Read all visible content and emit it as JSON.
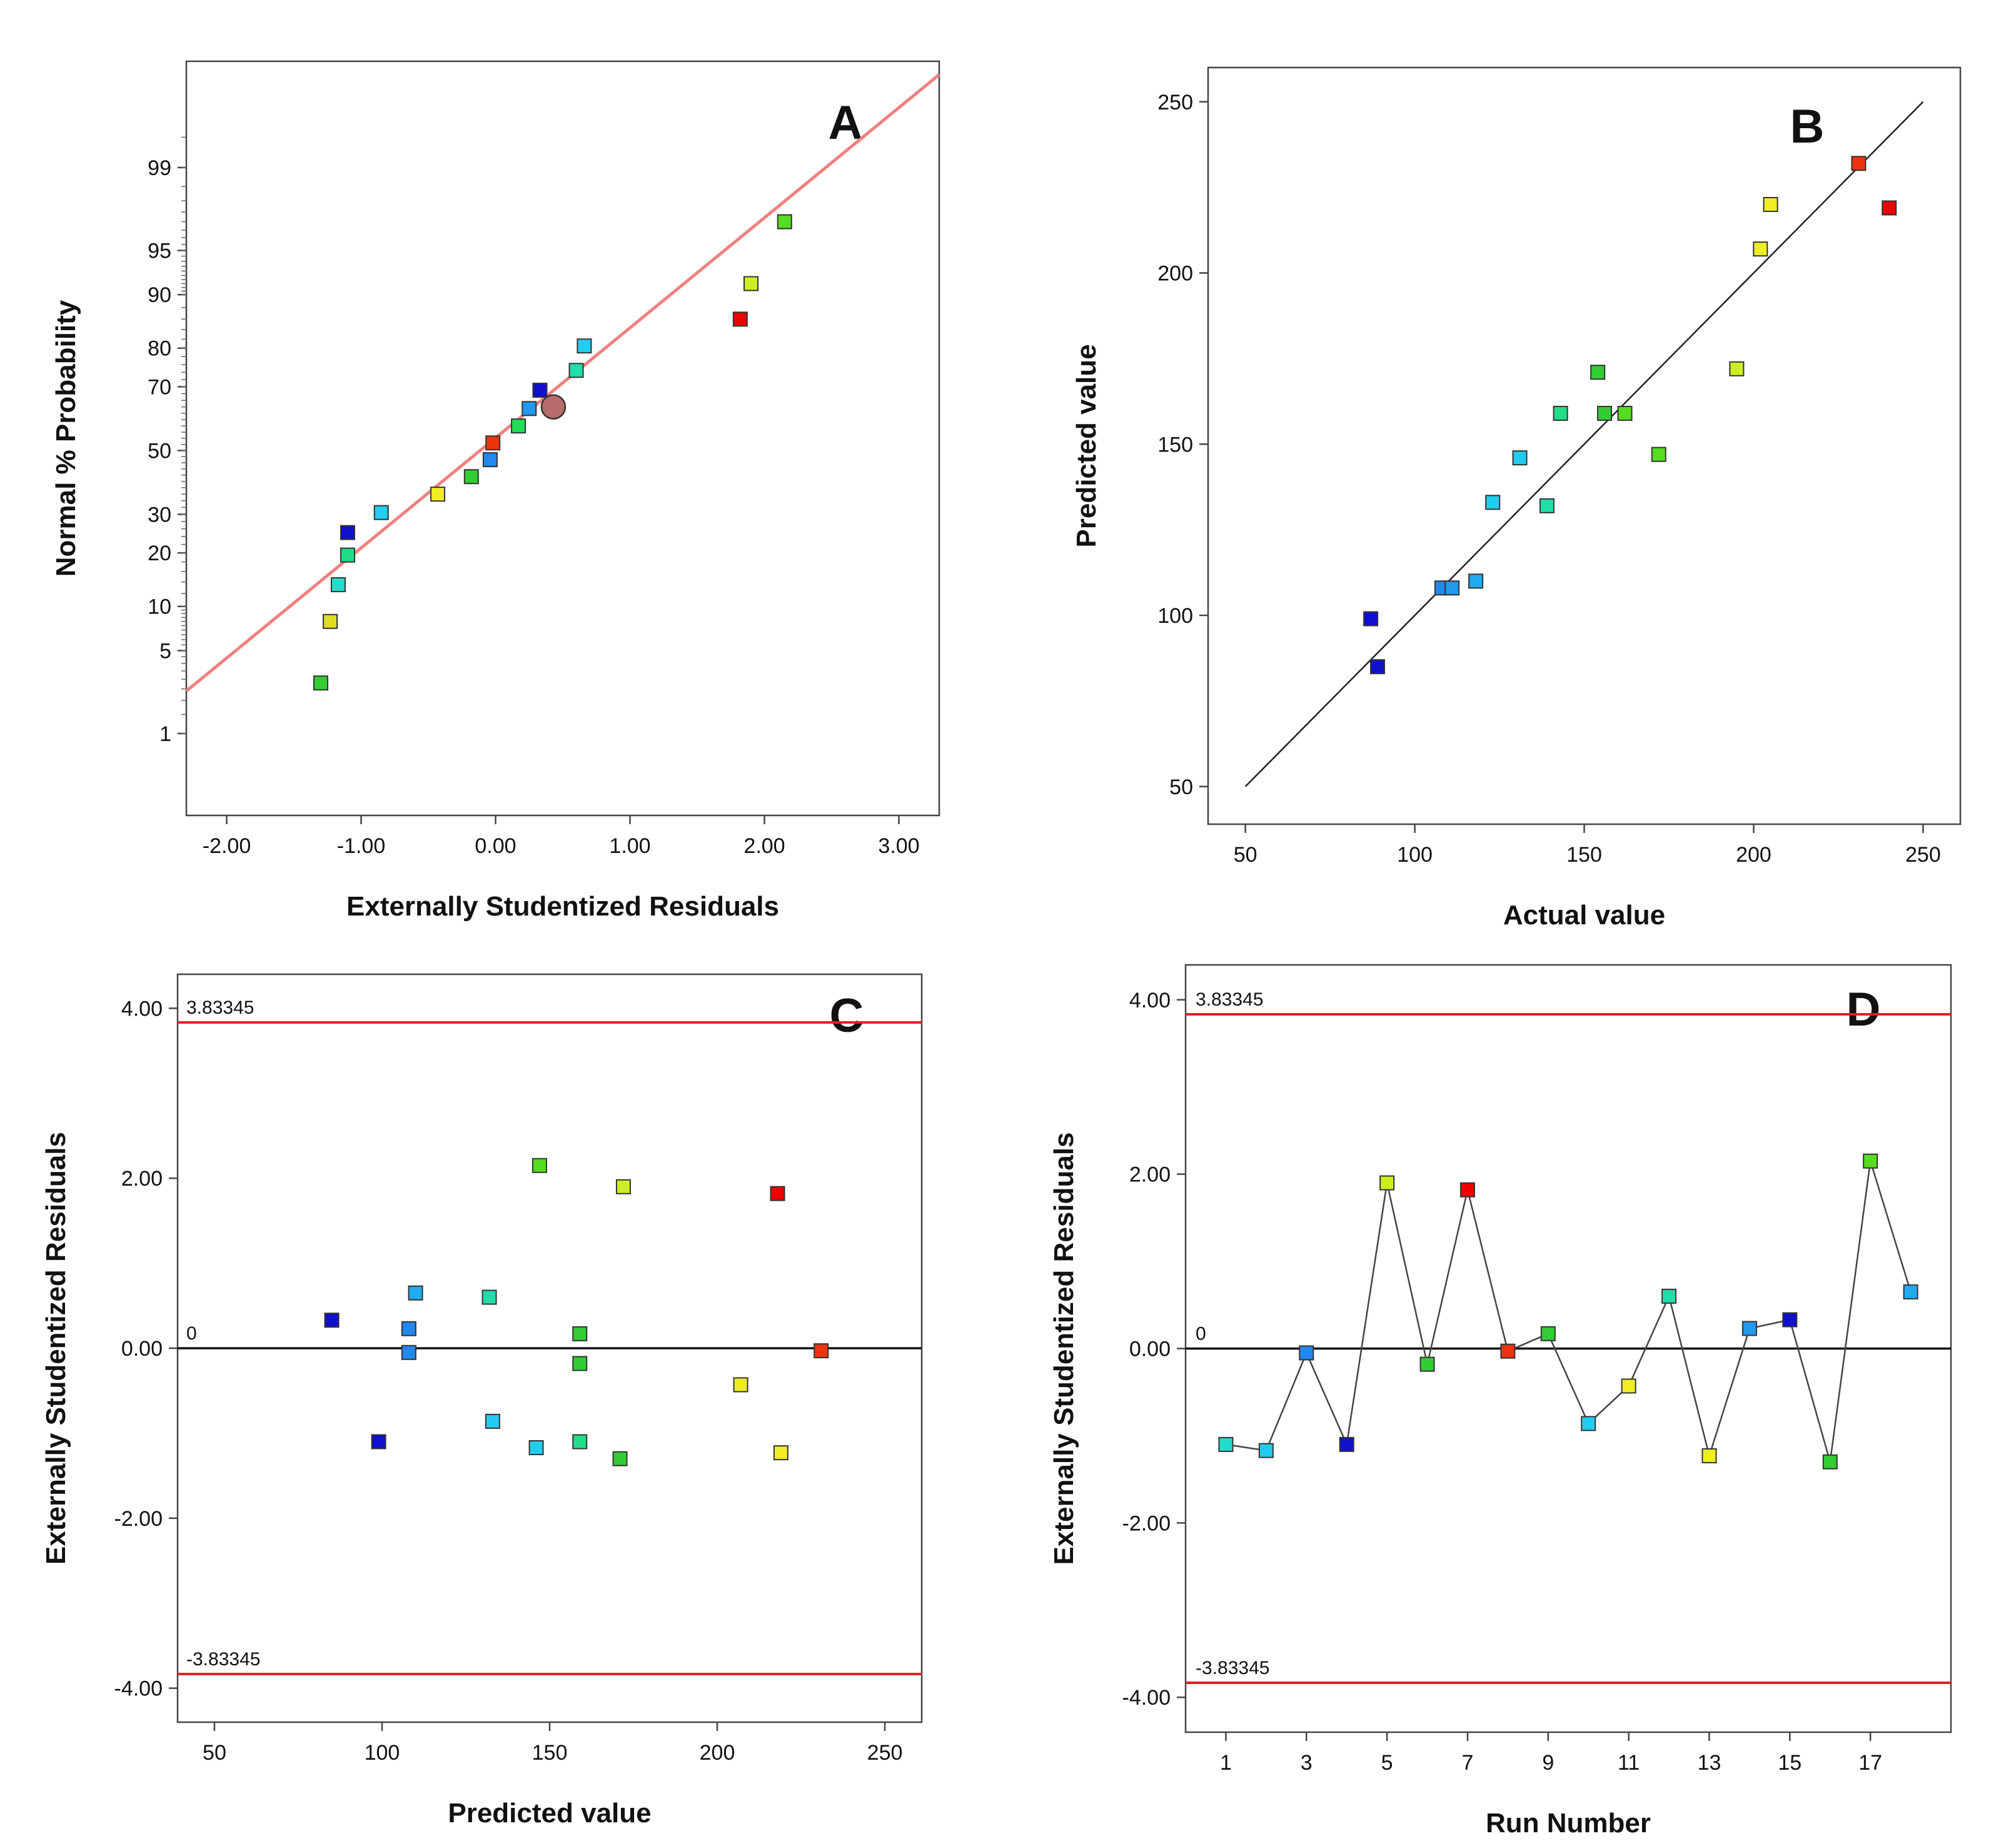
{
  "chart_data": [
    {
      "panel": "A",
      "type": "scatter",
      "title": "",
      "xlabel": "Externally Studentized Residuals",
      "ylabel": "Normal % Probability",
      "xlim": [
        -2.3,
        3.3
      ],
      "xticks": [
        "-2.00",
        "-1.00",
        "0.00",
        "1.00",
        "2.00",
        "3.00"
      ],
      "xtick_values": [
        -2,
        -1,
        0,
        1,
        2,
        3
      ],
      "yticks": [
        "1",
        "5",
        "10",
        "20",
        "30",
        "50",
        "70",
        "80",
        "90",
        "95",
        "99"
      ],
      "ytick_values": [
        1,
        5,
        10,
        20,
        30,
        50,
        70,
        80,
        90,
        95,
        99
      ],
      "grid": false,
      "points": [
        {
          "x": -1.3,
          "p": 2.8,
          "color": "#33cc33"
        },
        {
          "x": -1.23,
          "p": 8.0,
          "color": "#dddd22"
        },
        {
          "x": -1.17,
          "p": 13.5,
          "color": "#22ddcc"
        },
        {
          "x": -1.1,
          "p": 19.5,
          "color": "#22dd88"
        },
        {
          "x": -1.1,
          "p": 25.0,
          "color": "#1111cc"
        },
        {
          "x": -0.85,
          "p": 30.5,
          "color": "#22ccee"
        },
        {
          "x": -0.43,
          "p": 36.0,
          "color": "#eeee22"
        },
        {
          "x": -0.18,
          "p": 41.5,
          "color": "#33cc33"
        },
        {
          "x": -0.04,
          "p": 47.0,
          "color": "#2288ee"
        },
        {
          "x": -0.02,
          "p": 52.5,
          "color": "#ee3311"
        },
        {
          "x": 0.17,
          "p": 58.0,
          "color": "#22dd55"
        },
        {
          "x": 0.25,
          "p": 63.5,
          "color": "#2299ee"
        },
        {
          "x": 0.33,
          "p": 69.0,
          "color": "#1111cc"
        },
        {
          "x": 0.6,
          "p": 74.5,
          "color": "#22ddaa"
        },
        {
          "x": 0.66,
          "p": 80.5,
          "color": "#22ccee"
        },
        {
          "x": 1.82,
          "p": 86.0,
          "color": "#ee0000"
        },
        {
          "x": 1.9,
          "p": 91.5,
          "color": "#ccee22"
        },
        {
          "x": 2.15,
          "p": 97.0,
          "color": "#55dd22"
        }
      ],
      "highlight_point": {
        "x": 0.43,
        "p": 64.0,
        "color": "#b86b6b"
      },
      "fit_line": {
        "color": "#f08080",
        "x": [
          -2.3,
          3.3
        ],
        "p": [
          2.4,
          99.9
        ]
      }
    },
    {
      "panel": "B",
      "type": "scatter",
      "title": "",
      "xlabel": "Actual value",
      "ylabel": "Predicted value",
      "xlim": [
        39,
        261
      ],
      "ylim": [
        39,
        260
      ],
      "xticks": [
        "50",
        "100",
        "150",
        "200",
        "250"
      ],
      "xtick_values": [
        50,
        100,
        150,
        200,
        250
      ],
      "yticks": [
        "50",
        "100",
        "150",
        "200",
        "250"
      ],
      "ytick_values": [
        50,
        100,
        150,
        200,
        250
      ],
      "grid": false,
      "points": [
        {
          "x": 87,
          "y": 99,
          "color": "#1111cc"
        },
        {
          "x": 89,
          "y": 85,
          "color": "#1111cc"
        },
        {
          "x": 108,
          "y": 108,
          "color": "#2288ee"
        },
        {
          "x": 111,
          "y": 108,
          "color": "#2299ee"
        },
        {
          "x": 118,
          "y": 110,
          "color": "#22aaee"
        },
        {
          "x": 123,
          "y": 133,
          "color": "#22ccee"
        },
        {
          "x": 131,
          "y": 146,
          "color": "#22ccee"
        },
        {
          "x": 139,
          "y": 132,
          "color": "#22ddaa"
        },
        {
          "x": 143,
          "y": 159,
          "color": "#22dd88"
        },
        {
          "x": 154,
          "y": 171,
          "color": "#33cc33"
        },
        {
          "x": 156,
          "y": 159,
          "color": "#33cc33"
        },
        {
          "x": 162,
          "y": 159,
          "color": "#55dd22"
        },
        {
          "x": 172,
          "y": 147,
          "color": "#55dd22"
        },
        {
          "x": 195,
          "y": 172,
          "color": "#ccee22"
        },
        {
          "x": 202,
          "y": 207,
          "color": "#eeee22"
        },
        {
          "x": 205,
          "y": 220,
          "color": "#eeee22"
        },
        {
          "x": 231,
          "y": 232,
          "color": "#ee3311"
        },
        {
          "x": 240,
          "y": 219,
          "color": "#ee0000"
        }
      ],
      "fit_line": {
        "color": "#222222",
        "x": [
          50,
          250
        ],
        "y": [
          50,
          250
        ]
      }
    },
    {
      "panel": "C",
      "type": "scatter",
      "title": "",
      "xlabel": "Predicted value",
      "ylabel": "Externally Studentized Residuals",
      "xlim": [
        39,
        261
      ],
      "ylim": [
        -4.4,
        4.4
      ],
      "xticks": [
        "50",
        "100",
        "150",
        "200",
        "250"
      ],
      "xtick_values": [
        50,
        100,
        150,
        200,
        250
      ],
      "yticks": [
        "4.00",
        "2.00",
        "0.00",
        "-2.00",
        "-4.00"
      ],
      "ytick_values": [
        4,
        2,
        0,
        -2,
        -4
      ],
      "limits": [
        {
          "value": 3.83345,
          "label": "3.83345",
          "color": "#dd2222"
        },
        {
          "value": -3.83345,
          "label": "-3.83345",
          "color": "#dd2222"
        }
      ],
      "zero_line": {
        "value": 0,
        "label": "0",
        "color": "#111111"
      },
      "points": [
        {
          "x": 85,
          "y": 0.33,
          "color": "#1111cc"
        },
        {
          "x": 99,
          "y": -1.1,
          "color": "#1111cc"
        },
        {
          "x": 108,
          "y": 0.23,
          "color": "#2288ee"
        },
        {
          "x": 108,
          "y": -0.05,
          "color": "#2288ee"
        },
        {
          "x": 110,
          "y": 0.65,
          "color": "#22aaee"
        },
        {
          "x": 132,
          "y": 0.6,
          "color": "#22ddaa"
        },
        {
          "x": 133,
          "y": -0.86,
          "color": "#22ccee"
        },
        {
          "x": 146,
          "y": -1.17,
          "color": "#22ccee"
        },
        {
          "x": 147,
          "y": 2.15,
          "color": "#55dd22"
        },
        {
          "x": 159,
          "y": 0.17,
          "color": "#33cc33"
        },
        {
          "x": 159,
          "y": -0.18,
          "color": "#33cc33"
        },
        {
          "x": 159,
          "y": -1.1,
          "color": "#22dd88"
        },
        {
          "x": 171,
          "y": -1.3,
          "color": "#33cc33"
        },
        {
          "x": 172,
          "y": 1.9,
          "color": "#ccee22"
        },
        {
          "x": 207,
          "y": -0.43,
          "color": "#eeee22"
        },
        {
          "x": 218,
          "y": 1.82,
          "color": "#ee0000"
        },
        {
          "x": 219,
          "y": -1.23,
          "color": "#eeee22"
        },
        {
          "x": 231,
          "y": -0.03,
          "color": "#ee3311"
        }
      ]
    },
    {
      "panel": "D",
      "type": "line",
      "title": "",
      "xlabel": "Run Number",
      "ylabel": "Externally Studentized Residuals",
      "xlim": [
        0,
        19
      ],
      "ylim": [
        -4.4,
        4.4
      ],
      "xticks": [
        "1",
        "3",
        "5",
        "7",
        "9",
        "11",
        "13",
        "15",
        "17"
      ],
      "xtick_values": [
        1,
        3,
        5,
        7,
        9,
        11,
        13,
        15,
        17
      ],
      "yticks": [
        "4.00",
        "2.00",
        "0.00",
        "-2.00",
        "-4.00"
      ],
      "ytick_values": [
        4,
        2,
        0,
        -2,
        -4
      ],
      "limits": [
        {
          "value": 3.83345,
          "label": "3.83345",
          "color": "#dd2222"
        },
        {
          "value": -3.83345,
          "label": "-3.83345",
          "color": "#dd2222"
        }
      ],
      "zero_line": {
        "value": 0,
        "label": "0",
        "color": "#111111"
      },
      "x": [
        1,
        2,
        3,
        4,
        5,
        6,
        7,
        8,
        9,
        10,
        11,
        12,
        13,
        14,
        15,
        16,
        17,
        18
      ],
      "series": [
        {
          "name": "residuals",
          "values": [
            -1.1,
            -1.17,
            -0.05,
            -1.1,
            1.9,
            -0.18,
            1.82,
            -0.03,
            0.17,
            -0.86,
            -0.43,
            0.6,
            -1.23,
            0.23,
            0.33,
            -1.3,
            2.15,
            0.65
          ],
          "colors": [
            "#22ddcc",
            "#22ccee",
            "#2288ee",
            "#1111cc",
            "#ccee22",
            "#33cc33",
            "#ee0000",
            "#ee3311",
            "#33cc33",
            "#22ccee",
            "#eeee22",
            "#22ddaa",
            "#eeee22",
            "#2299ee",
            "#1111cc",
            "#33cc33",
            "#55dd22",
            "#22aaee"
          ]
        }
      ]
    }
  ],
  "panel_letters": [
    "A",
    "B",
    "C",
    "D"
  ]
}
